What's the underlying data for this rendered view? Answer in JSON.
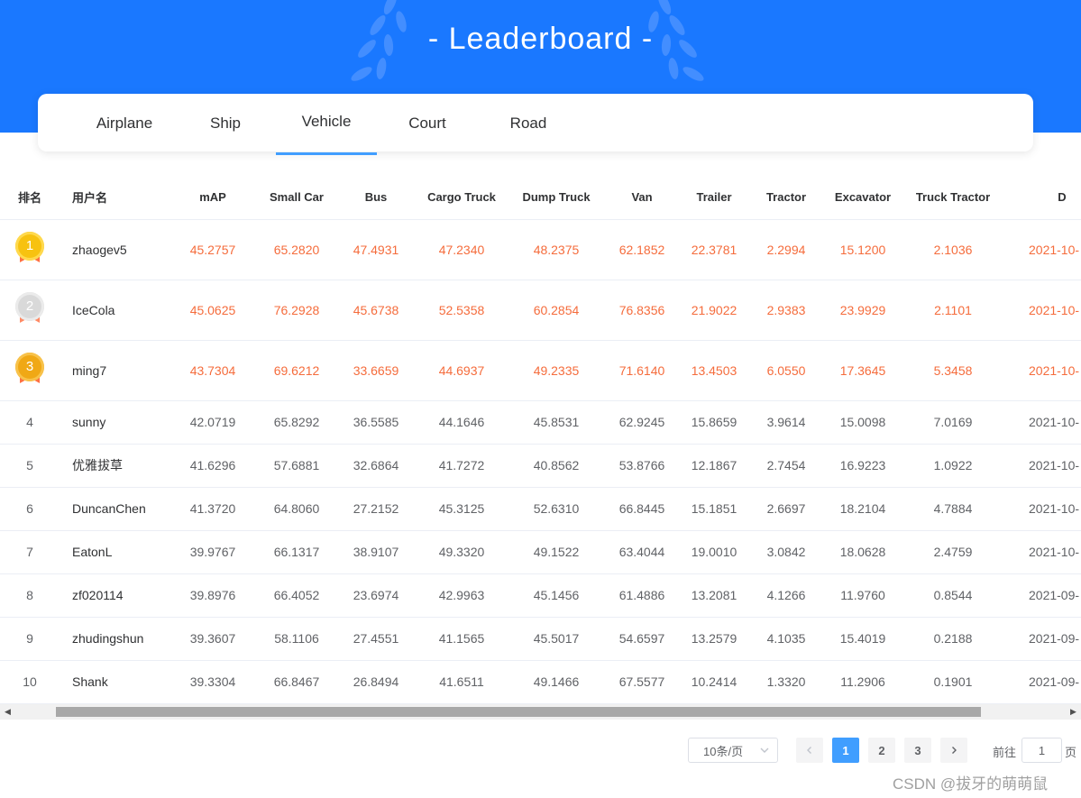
{
  "header": {
    "title": "- Leaderboard -"
  },
  "tabs": [
    {
      "label": "Airplane",
      "active": false
    },
    {
      "label": "Ship",
      "active": false
    },
    {
      "label": "Vehicle",
      "active": true
    },
    {
      "label": "Court",
      "active": false
    },
    {
      "label": "Road",
      "active": false
    }
  ],
  "table": {
    "columns": [
      "排名",
      "用户名",
      "mAP",
      "Small Car",
      "Bus",
      "Cargo Truck",
      "Dump Truck",
      "Van",
      "Trailer",
      "Tractor",
      "Excavator",
      "Truck Tractor",
      "D"
    ],
    "rows": [
      {
        "rank": "1",
        "user": "zhaogev5",
        "values": [
          "45.2757",
          "65.2820",
          "47.4931",
          "47.2340",
          "48.2375",
          "62.1852",
          "22.3781",
          "2.2994",
          "15.1200",
          "2.1036"
        ],
        "date": "2021-10-"
      },
      {
        "rank": "2",
        "user": "IceCola",
        "values": [
          "45.0625",
          "76.2928",
          "45.6738",
          "52.5358",
          "60.2854",
          "76.8356",
          "21.9022",
          "2.9383",
          "23.9929",
          "2.1101"
        ],
        "date": "2021-10-"
      },
      {
        "rank": "3",
        "user": "ming7",
        "values": [
          "43.7304",
          "69.6212",
          "33.6659",
          "44.6937",
          "49.2335",
          "71.6140",
          "13.4503",
          "6.0550",
          "17.3645",
          "5.3458"
        ],
        "date": "2021-10-"
      },
      {
        "rank": "4",
        "user": "sunny",
        "values": [
          "42.0719",
          "65.8292",
          "36.5585",
          "44.1646",
          "45.8531",
          "62.9245",
          "15.8659",
          "3.9614",
          "15.0098",
          "7.0169"
        ],
        "date": "2021-10-"
      },
      {
        "rank": "5",
        "user": "优雅拔草",
        "values": [
          "41.6296",
          "57.6881",
          "32.6864",
          "41.7272",
          "40.8562",
          "53.8766",
          "12.1867",
          "2.7454",
          "16.9223",
          "1.0922"
        ],
        "date": "2021-10-"
      },
      {
        "rank": "6",
        "user": "DuncanChen",
        "values": [
          "41.3720",
          "64.8060",
          "27.2152",
          "45.3125",
          "52.6310",
          "66.8445",
          "15.1851",
          "2.6697",
          "18.2104",
          "4.7884"
        ],
        "date": "2021-10-"
      },
      {
        "rank": "7",
        "user": "EatonL",
        "values": [
          "39.9767",
          "66.1317",
          "38.9107",
          "49.3320",
          "49.1522",
          "63.4044",
          "19.0010",
          "3.0842",
          "18.0628",
          "2.4759"
        ],
        "date": "2021-10-"
      },
      {
        "rank": "8",
        "user": "zf020114",
        "values": [
          "39.8976",
          "66.4052",
          "23.6974",
          "42.9963",
          "45.1456",
          "61.4886",
          "13.2081",
          "4.1266",
          "11.9760",
          "0.8544"
        ],
        "date": "2021-09-"
      },
      {
        "rank": "9",
        "user": "zhudingshun",
        "values": [
          "39.3607",
          "58.1106",
          "27.4551",
          "41.1565",
          "45.5017",
          "54.6597",
          "13.2579",
          "4.1035",
          "15.4019",
          "0.2188"
        ],
        "date": "2021-09-"
      },
      {
        "rank": "10",
        "user": "Shank",
        "values": [
          "39.3304",
          "66.8467",
          "26.8494",
          "41.6511",
          "49.1466",
          "67.5577",
          "10.2414",
          "1.3320",
          "11.2906",
          "0.1901"
        ],
        "date": "2021-09-"
      }
    ]
  },
  "pagination": {
    "page_size": "10条/页",
    "pages": [
      "1",
      "2",
      "3"
    ],
    "current": "1",
    "goto_prefix": "前往",
    "goto_value": "1",
    "goto_suffix": "页"
  },
  "colors": {
    "banner": "#1a78ff",
    "accent": "#409eff",
    "top3_text": "#f56c3c"
  },
  "watermark": "CSDN @拔牙的萌萌鼠"
}
